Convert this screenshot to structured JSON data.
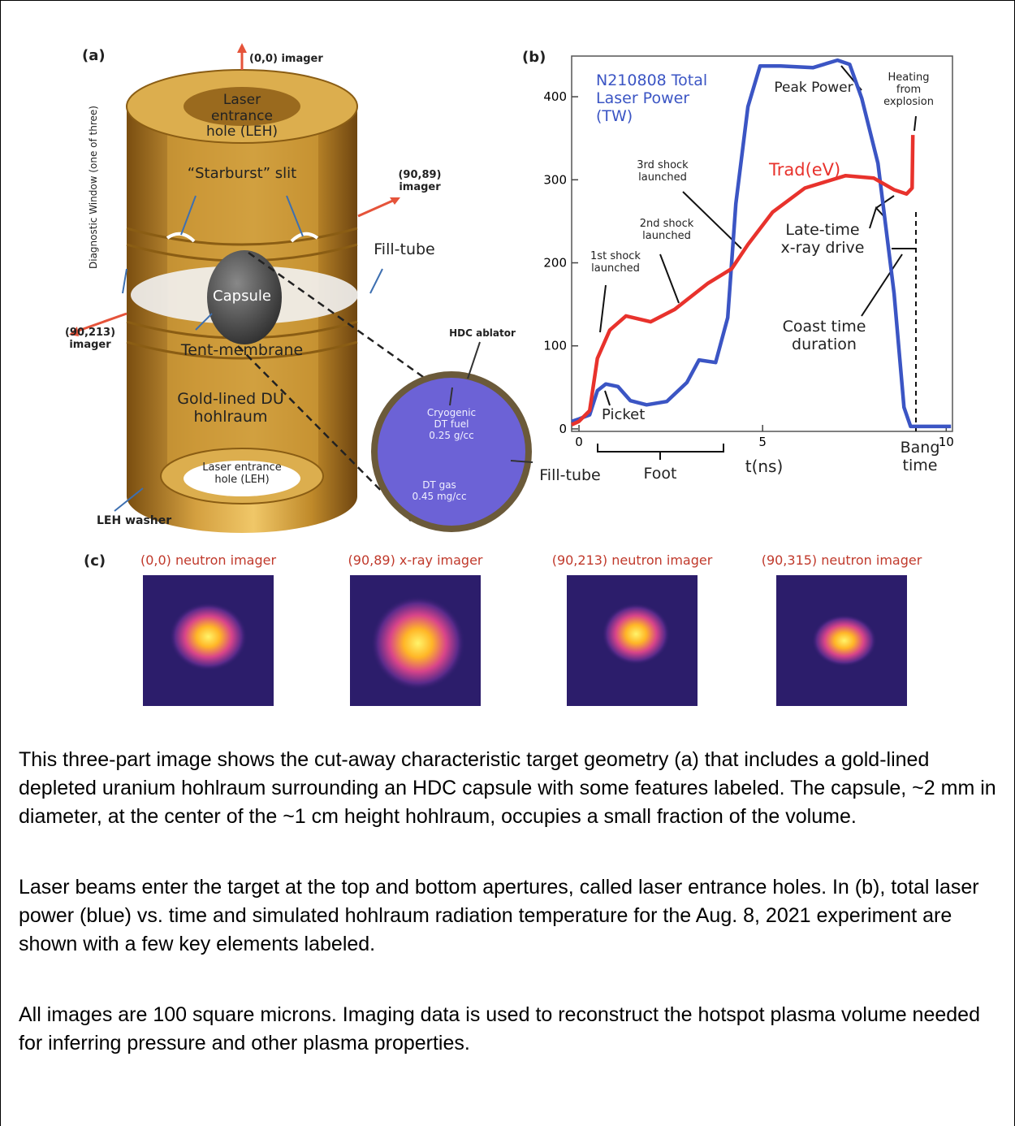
{
  "figure": {
    "panel_a": {
      "label": "(a)",
      "top_imager": "(0,0) imager",
      "leh_top": [
        "Laser",
        "entrance",
        "hole (LEH)"
      ],
      "starburst": "“Starburst” slit",
      "diagnostic_window": "Diagnostic Window (one of three)",
      "imager_90_89": [
        "(90,89)",
        "imager"
      ],
      "fill_tube": "Fill-tube",
      "capsule": "Capsule",
      "imager_90_213": [
        "(90,213)",
        "imager"
      ],
      "tent_membrane": "Tent-membrane",
      "hohlraum": [
        "Gold-lined DU",
        "hohlraum"
      ],
      "leh_bottom": [
        "Laser entrance",
        "hole (LEH)"
      ],
      "leh_washer": "LEH washer",
      "hdc_ablator": "HDC ablator",
      "fuel": [
        "Cryogenic",
        "DT fuel",
        "0.25 g/cc"
      ],
      "gas": [
        "DT gas",
        "0.45 mg/cc"
      ],
      "capsule_fill_tube": "Fill-tube"
    },
    "panel_c": {
      "label": "(c)",
      "images": [
        "(0,0) neutron imager",
        "(90,89) x-ray imager",
        "(90,213) neutron imager",
        "(90,315) neutron imager"
      ]
    }
  },
  "chart_data": {
    "type": "line",
    "label": "(b)",
    "x_label": "t(ns)",
    "xlim": [
      -0.2,
      10.17
    ],
    "ylim": [
      -3,
      449
    ],
    "xticks": [
      0,
      5,
      10
    ],
    "yticks": [
      0,
      100,
      200,
      300,
      400
    ],
    "series": [
      {
        "name": "N210808 Total Laser Power (TW)",
        "color": "#3b55c4",
        "x": [
          -0.2,
          0,
          0.29,
          0.5,
          0.73,
          1.06,
          1.4,
          1.84,
          2.39,
          2.94,
          3.27,
          3.72,
          4.05,
          4.27,
          4.6,
          4.93,
          5.49,
          6.37,
          7.04,
          7.37,
          7.7,
          8.14,
          8.58,
          8.85,
          9.03,
          10.13
        ],
        "values": [
          9,
          12,
          17,
          46,
          54,
          51,
          34,
          29,
          33,
          56,
          83,
          80,
          134,
          271,
          388,
          437,
          437,
          435,
          444,
          439,
          398,
          320,
          163,
          26,
          3,
          3
        ]
      },
      {
        "name": "Trad(eV)",
        "color": "#e8322c",
        "x": [
          -0.2,
          0,
          0.29,
          0.5,
          0.84,
          1.28,
          1.95,
          2.61,
          3.5,
          4.16,
          4.6,
          5.27,
          6.15,
          7.26,
          8.03,
          8.58,
          8.92,
          9.07,
          9.09
        ],
        "values": [
          5,
          9,
          22,
          85,
          119,
          136,
          129,
          144,
          175,
          193,
          222,
          261,
          290,
          305,
          302,
          288,
          283,
          290,
          354
        ]
      }
    ],
    "annotations": {
      "peak_power": "Peak Power",
      "heating": [
        "Heating",
        "from",
        "explosion"
      ],
      "shock3": [
        "3rd shock",
        "launched"
      ],
      "shock2": [
        "2nd shock",
        "launched"
      ],
      "shock1": [
        "1st shock",
        "launched"
      ],
      "late_time": [
        "Late-time",
        "x-ray drive"
      ],
      "coast": [
        "Coast time",
        "duration"
      ],
      "picket": "Picket",
      "foot": "Foot",
      "bang": [
        "Bang",
        "time"
      ]
    }
  },
  "caption": {
    "paragraphs": [
      "This three-part image shows the cut-away characteristic target geometry (a) that includes a gold-lined depleted uranium hohlraum surrounding an HDC capsule with some features labeled. The capsule, ~2 mm in diameter, at the center of the ~1 cm height hohlraum, occupies a small fraction of the volume.",
      "Laser beams enter the target at the top and bottom apertures, called laser entrance holes. In (b), total laser power (blue) vs. time and simulated hohlraum radiation temperature for the Aug. 8, 2021 experiment are shown with a few key elements labeled.",
      "All images are 100 square microns. Imaging data is used to reconstruct the hotspot plasma volume needed for inferring pressure and other plasma properties."
    ]
  }
}
